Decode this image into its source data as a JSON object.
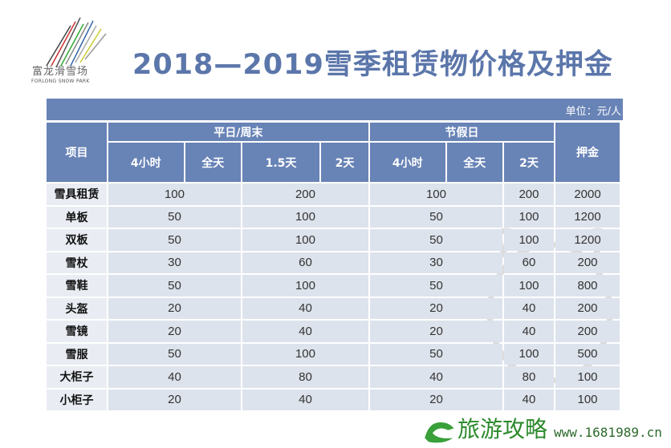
{
  "logo": {
    "name_cn": "富龙滑雪场",
    "name_en": "FORLONG SNOW PARK"
  },
  "title": "2018—2019雪季租赁物价格及押金",
  "unit": "单位：元/人",
  "headers": {
    "item": "项目",
    "weekday_group": "平日/周末",
    "holiday_group": "节假日",
    "deposit": "押金",
    "weekday_cols": [
      "4小时",
      "全天",
      "1.5天",
      "2天"
    ],
    "holiday_cols": [
      "4小时",
      "全天",
      "2天"
    ]
  },
  "rows": [
    {
      "item": "雪具租赁",
      "wd_short": "100",
      "wd_long": "200",
      "hol_short": "100",
      "hol_2d": "200",
      "deposit": "2000"
    },
    {
      "item": "单板",
      "wd_short": "50",
      "wd_long": "100",
      "hol_short": "50",
      "hol_2d": "100",
      "deposit": "1200"
    },
    {
      "item": "双板",
      "wd_short": "50",
      "wd_long": "100",
      "hol_short": "50",
      "hol_2d": "100",
      "deposit": "1200"
    },
    {
      "item": "雪杖",
      "wd_short": "30",
      "wd_long": "60",
      "hol_short": "30",
      "hol_2d": "60",
      "deposit": "200"
    },
    {
      "item": "雪鞋",
      "wd_short": "50",
      "wd_long": "100",
      "hol_short": "50",
      "hol_2d": "100",
      "deposit": "800"
    },
    {
      "item": "头盔",
      "wd_short": "20",
      "wd_long": "40",
      "hol_short": "20",
      "hol_2d": "40",
      "deposit": "200"
    },
    {
      "item": "雪镜",
      "wd_short": "20",
      "wd_long": "40",
      "hol_short": "20",
      "hol_2d": "40",
      "deposit": "200"
    },
    {
      "item": "雪服",
      "wd_short": "50",
      "wd_long": "100",
      "hol_short": "50",
      "hol_2d": "100",
      "deposit": "500"
    },
    {
      "item": "大柜子",
      "wd_short": "40",
      "wd_long": "80",
      "hol_short": "40",
      "hol_2d": "80",
      "deposit": "100"
    },
    {
      "item": "小柜子",
      "wd_short": "20",
      "wd_long": "40",
      "hol_short": "20",
      "hol_2d": "40",
      "deposit": "100"
    }
  ],
  "watermark": {
    "text": "旅游攻略",
    "url": "www.1681989.cn"
  }
}
